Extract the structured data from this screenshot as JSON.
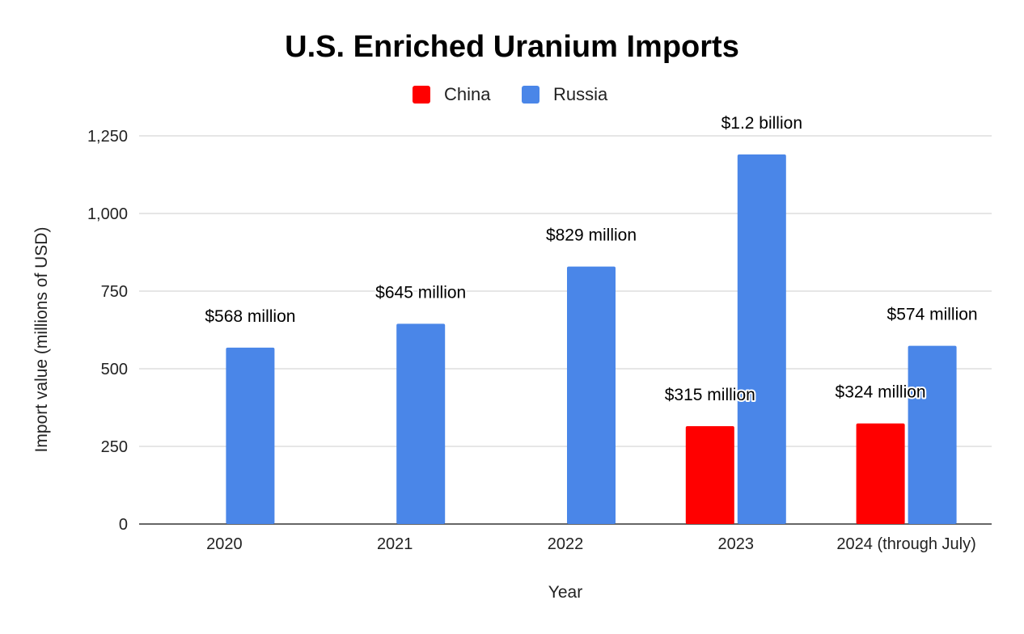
{
  "colors": {
    "china": "#ff0000",
    "russia": "#4a86e8"
  },
  "chart_data": {
    "type": "bar",
    "title": "U.S. Enriched Uranium Imports",
    "xlabel": "Year",
    "ylabel": "Import value (millions of USD)",
    "ylim": [
      0,
      1250
    ],
    "yticks": [
      0,
      250,
      500,
      750,
      1000,
      1250
    ],
    "ytick_labels": [
      "0",
      "250",
      "500",
      "750",
      "1,000",
      "1,250"
    ],
    "grid": true,
    "legend_position": "top-center",
    "categories": [
      "2020",
      "2021",
      "2022",
      "2023",
      "2024 (through July)"
    ],
    "series": [
      {
        "name": "China",
        "color": "#ff0000",
        "values": [
          null,
          null,
          null,
          315,
          324
        ],
        "labels": [
          "",
          "",
          "",
          "$315 million",
          "$324 million"
        ]
      },
      {
        "name": "Russia",
        "color": "#4a86e8",
        "values": [
          568,
          645,
          829,
          1190,
          574
        ],
        "labels": [
          "$568 million",
          "$645 million",
          "$829 million",
          "$1.2 billion",
          "$574 million"
        ]
      }
    ]
  }
}
